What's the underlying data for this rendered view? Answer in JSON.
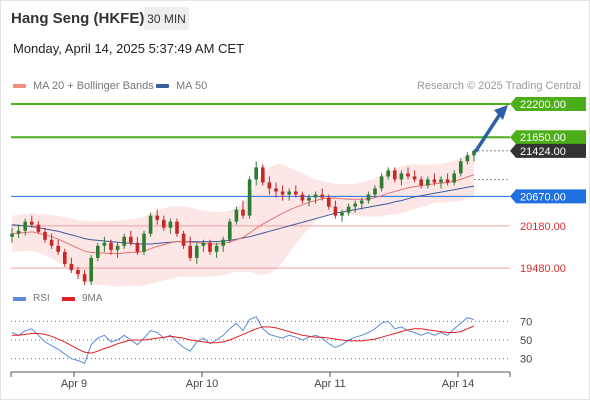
{
  "header": {
    "title": "Hang Seng (HKFE)",
    "timeframe": "30 MIN",
    "datetime": "Monday, April 14, 2025 5:37:49 AM CET"
  },
  "legend": {
    "items": [
      {
        "label": "MA 20 + Bollinger Bands",
        "color": "#f28b82"
      },
      {
        "label": "MA 50",
        "color": "#3b5c9a"
      }
    ],
    "credit": "Research © 2025 Trading Central"
  },
  "chart_data": [
    {
      "type": "candlestick",
      "title": "Hang Seng (HKFE)",
      "timeframe": "30 MIN",
      "x_ticks": [
        "Apr 9",
        "Apr 10",
        "Apr 11",
        "Apr 14"
      ],
      "y_range": [
        19200,
        22350
      ],
      "levels": [
        {
          "label": "22200.00",
          "value": 22200,
          "kind": "target",
          "color": "#4caf1a"
        },
        {
          "label": "21650.00",
          "value": 21650,
          "kind": "resistance",
          "color": "#4caf1a"
        },
        {
          "label": "21424.00",
          "value": 21424,
          "kind": "last",
          "color": "#333333"
        },
        {
          "label": "20670.00",
          "value": 20670,
          "kind": "pivot",
          "color": "#1f6fe0"
        },
        {
          "label": "20180.00",
          "value": 20180,
          "kind": "support",
          "color": "#d32f2f"
        },
        {
          "label": "19480.00",
          "value": 19480,
          "kind": "support",
          "color": "#d32f2f"
        }
      ],
      "ohlc": [
        [
          20000,
          20150,
          19900,
          20050
        ],
        [
          20050,
          20200,
          19980,
          20100
        ],
        [
          20100,
          20300,
          20020,
          20250
        ],
        [
          20250,
          20350,
          20150,
          20200
        ],
        [
          20200,
          20260,
          20050,
          20080
        ],
        [
          20080,
          20150,
          19900,
          19950
        ],
        [
          19950,
          20050,
          19800,
          19850
        ],
        [
          19850,
          19950,
          19700,
          19750
        ],
        [
          19750,
          19800,
          19500,
          19550
        ],
        [
          19550,
          19650,
          19400,
          19450
        ],
        [
          19450,
          19500,
          19300,
          19380
        ],
        [
          19380,
          19450,
          19200,
          19260
        ],
        [
          19260,
          19700,
          19200,
          19650
        ],
        [
          19650,
          19900,
          19600,
          19850
        ],
        [
          19850,
          20000,
          19750,
          19900
        ],
        [
          19900,
          19950,
          19700,
          19780
        ],
        [
          19780,
          19900,
          19650,
          19850
        ],
        [
          19850,
          20050,
          19800,
          20000
        ],
        [
          20000,
          20100,
          19850,
          19900
        ],
        [
          19900,
          20000,
          19700,
          19750
        ],
        [
          19750,
          20100,
          19700,
          20050
        ],
        [
          20050,
          20400,
          20000,
          20350
        ],
        [
          20350,
          20450,
          20200,
          20280
        ],
        [
          20280,
          20350,
          20100,
          20150
        ],
        [
          20150,
          20300,
          20050,
          20250
        ],
        [
          20250,
          20300,
          20000,
          20050
        ],
        [
          20050,
          20100,
          19800,
          19850
        ],
        [
          19850,
          20000,
          19600,
          19650
        ],
        [
          19650,
          19900,
          19550,
          19850
        ],
        [
          19850,
          19950,
          19750,
          19900
        ],
        [
          19900,
          19950,
          19700,
          19750
        ],
        [
          19750,
          19900,
          19650,
          19850
        ],
        [
          19850,
          20000,
          19750,
          19950
        ],
        [
          19950,
          20300,
          19900,
          20250
        ],
        [
          20250,
          20500,
          20200,
          20450
        ],
        [
          20450,
          20600,
          20300,
          20350
        ],
        [
          20350,
          21000,
          20300,
          20950
        ],
        [
          20950,
          21250,
          20850,
          21150
        ],
        [
          21150,
          21200,
          20850,
          20900
        ],
        [
          20900,
          21000,
          20700,
          20800
        ],
        [
          20800,
          20900,
          20650,
          20750
        ],
        [
          20750,
          20850,
          20600,
          20700
        ],
        [
          20700,
          20800,
          20600,
          20750
        ],
        [
          20750,
          20850,
          20650,
          20700
        ],
        [
          20700,
          20750,
          20550,
          20600
        ],
        [
          20600,
          20700,
          20500,
          20650
        ],
        [
          20650,
          20750,
          20550,
          20700
        ],
        [
          20700,
          20800,
          20600,
          20650
        ],
        [
          20650,
          20700,
          20450,
          20500
        ],
        [
          20500,
          20600,
          20300,
          20350
        ],
        [
          20350,
          20450,
          20250,
          20400
        ],
        [
          20400,
          20550,
          20350,
          20500
        ],
        [
          20500,
          20600,
          20400,
          20550
        ],
        [
          20550,
          20650,
          20450,
          20600
        ],
        [
          20600,
          20750,
          20550,
          20700
        ],
        [
          20700,
          20850,
          20650,
          20800
        ],
        [
          20800,
          21050,
          20750,
          21000
        ],
        [
          21000,
          21150,
          20950,
          21100
        ],
        [
          21100,
          21150,
          20900,
          20950
        ],
        [
          20950,
          21100,
          20850,
          21050
        ],
        [
          21050,
          21150,
          20950,
          21000
        ],
        [
          21000,
          21100,
          20900,
          20950
        ],
        [
          20950,
          21000,
          20800,
          20850
        ],
        [
          20850,
          21000,
          20800,
          20950
        ],
        [
          20950,
          21050,
          20850,
          20900
        ],
        [
          20900,
          21000,
          20800,
          20950
        ],
        [
          20950,
          21050,
          20850,
          20900
        ],
        [
          20900,
          21100,
          20850,
          21050
        ],
        [
          21050,
          21300,
          21000,
          21250
        ],
        [
          21250,
          21400,
          21200,
          21350
        ],
        [
          21350,
          21450,
          21250,
          21424
        ]
      ],
      "ma20": [
        20050,
        20060,
        20070,
        20080,
        20060,
        20030,
        20000,
        19960,
        19910,
        19860,
        19810,
        19760,
        19740,
        19730,
        19730,
        19720,
        19720,
        19730,
        19740,
        19740,
        19760,
        19800,
        19840,
        19870,
        19900,
        19920,
        19920,
        19910,
        19900,
        19890,
        19880,
        19880,
        19890,
        19910,
        19950,
        19990,
        20060,
        20140,
        20210,
        20270,
        20330,
        20390,
        20440,
        20490,
        20530,
        20570,
        20600,
        20630,
        20640,
        20640,
        20630,
        20620,
        20620,
        20620,
        20630,
        20650,
        20680,
        20720,
        20750,
        20780,
        20810,
        20830,
        20850,
        20860,
        20880,
        20890,
        20900,
        20920,
        20950,
        20990,
        21030
      ],
      "ma50": [
        20200,
        20190,
        20180,
        20170,
        20150,
        20130,
        20110,
        20090,
        20060,
        20030,
        20000,
        19970,
        19950,
        19940,
        19930,
        19920,
        19910,
        19900,
        19890,
        19880,
        19880,
        19880,
        19890,
        19900,
        19910,
        19920,
        19920,
        19920,
        19920,
        19920,
        19920,
        19920,
        19930,
        19940,
        19960,
        19980,
        20000,
        20030,
        20060,
        20090,
        20120,
        20150,
        20180,
        20210,
        20240,
        20270,
        20300,
        20330,
        20360,
        20390,
        20410,
        20430,
        20450,
        20470,
        20490,
        20510,
        20530,
        20550,
        20580,
        20600,
        20630,
        20660,
        20680,
        20700,
        20720,
        20740,
        20760,
        20780,
        20800,
        20820,
        20840
      ],
      "bb_upper": [
        20350,
        20360,
        20380,
        20390,
        20380,
        20370,
        20360,
        20340,
        20320,
        20300,
        20280,
        20270,
        20260,
        20260,
        20260,
        20260,
        20270,
        20280,
        20290,
        20300,
        20330,
        20380,
        20430,
        20470,
        20500,
        20510,
        20500,
        20480,
        20460,
        20440,
        20420,
        20410,
        20410,
        20430,
        20480,
        20560,
        20700,
        20900,
        21050,
        21150,
        21200,
        21200,
        21150,
        21100,
        21050,
        21000,
        20950,
        20920,
        20900,
        20880,
        20870,
        20870,
        20880,
        20900,
        20930,
        20970,
        21020,
        21080,
        21130,
        21170,
        21200,
        21200,
        21200,
        21200,
        21200,
        21210,
        21230,
        21260,
        21300,
        21350,
        21400
      ],
      "bb_lower": [
        19750,
        19760,
        19760,
        19770,
        19740,
        19690,
        19640,
        19580,
        19500,
        19420,
        19340,
        19250,
        19220,
        19200,
        19200,
        19180,
        19170,
        19180,
        19190,
        19180,
        19190,
        19220,
        19250,
        19270,
        19300,
        19330,
        19340,
        19340,
        19340,
        19340,
        19340,
        19350,
        19370,
        19390,
        19420,
        19420,
        19420,
        19380,
        19370,
        19390,
        19460,
        19580,
        19730,
        19880,
        20010,
        20140,
        20250,
        20340,
        20380,
        20400,
        20390,
        20370,
        20360,
        20340,
        20330,
        20330,
        20340,
        20360,
        20370,
        20390,
        20420,
        20460,
        20500,
        20520,
        20560,
        20570,
        20570,
        20580,
        20600,
        20630,
        20660
      ]
    },
    {
      "type": "line",
      "title": "",
      "y_ticks": [
        70,
        50,
        30
      ],
      "y_range": [
        20,
        80
      ],
      "series": [
        {
          "name": "RSI",
          "color": "#5b8bd9",
          "values": [
            58,
            55,
            60,
            62,
            55,
            48,
            44,
            40,
            35,
            30,
            28,
            25,
            45,
            52,
            55,
            48,
            50,
            55,
            50,
            45,
            52,
            60,
            58,
            52,
            55,
            48,
            42,
            38,
            48,
            52,
            46,
            50,
            55,
            62,
            68,
            60,
            72,
            75,
            62,
            56,
            54,
            52,
            55,
            53,
            50,
            53,
            55,
            52,
            46,
            42,
            45,
            50,
            53,
            55,
            58,
            62,
            68,
            70,
            62,
            64,
            60,
            58,
            55,
            58,
            55,
            58,
            55,
            62,
            68,
            74,
            72
          ]
        },
        {
          "name": "9MA",
          "color": "#e02020",
          "values": [
            55,
            55,
            56,
            57,
            57,
            56,
            54,
            51,
            48,
            44,
            40,
            37,
            36,
            38,
            41,
            43,
            46,
            48,
            50,
            50,
            50,
            51,
            52,
            53,
            54,
            53,
            52,
            50,
            49,
            48,
            47,
            47,
            48,
            50,
            53,
            56,
            59,
            62,
            64,
            64,
            63,
            61,
            59,
            57,
            55,
            54,
            53,
            53,
            52,
            51,
            50,
            49,
            49,
            49,
            50,
            51,
            53,
            55,
            57,
            59,
            61,
            62,
            62,
            61,
            60,
            59,
            58,
            58,
            59,
            62,
            65
          ]
        }
      ]
    }
  ]
}
